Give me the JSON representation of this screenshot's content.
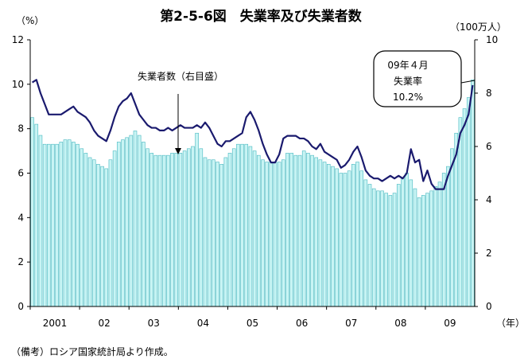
{
  "chart_data": {
    "type": "bar",
    "title": "第2-5-6図　失業率及び失業者数",
    "left_axis_unit": "（%）",
    "right_axis_unit": "（100万人）",
    "x_axis_unit": "（年）",
    "left_ylim": [
      0,
      12
    ],
    "left_yticks": [
      "0",
      "2",
      "4",
      "6",
      "8",
      "10",
      "12"
    ],
    "right_ylim": [
      0,
      10
    ],
    "right_yticks": [
      "0",
      "2",
      "4",
      "6",
      "8",
      "10"
    ],
    "x_tick_labels": [
      "2001",
      "02",
      "03",
      "04",
      "05",
      "06",
      "07",
      "08",
      "09"
    ],
    "grid": false,
    "series": [
      {
        "name": "失業率",
        "axis": "left",
        "mark": "bar",
        "values": [
          8.5,
          8.2,
          7.7,
          7.3,
          7.3,
          7.3,
          7.3,
          7.4,
          7.5,
          7.5,
          7.4,
          7.3,
          7.1,
          6.9,
          6.7,
          6.6,
          6.4,
          6.3,
          6.2,
          6.6,
          7.0,
          7.4,
          7.5,
          7.6,
          7.7,
          7.9,
          7.7,
          7.4,
          7.1,
          6.9,
          6.8,
          6.8,
          6.8,
          6.8,
          6.9,
          6.9,
          6.9,
          7.0,
          7.1,
          7.2,
          7.8,
          7.1,
          6.7,
          6.6,
          6.6,
          6.5,
          6.4,
          6.7,
          6.9,
          7.1,
          7.3,
          7.3,
          7.3,
          7.2,
          7.0,
          6.8,
          6.6,
          6.5,
          6.5,
          6.5,
          6.5,
          6.6,
          6.9,
          6.9,
          6.8,
          6.8,
          7.0,
          6.9,
          6.8,
          6.7,
          6.6,
          6.5,
          6.4,
          6.3,
          6.2,
          6.0,
          6.0,
          6.1,
          6.4,
          6.5,
          6.1,
          5.7,
          5.5,
          5.3,
          5.2,
          5.2,
          5.1,
          5.0,
          5.1,
          5.5,
          5.8,
          6.0,
          5.7,
          5.3,
          4.9,
          5.0,
          5.1,
          5.2,
          5.4,
          5.6,
          6.0,
          6.3,
          7.1,
          7.8,
          8.5,
          8.9,
          9.4,
          10.2
        ]
      },
      {
        "name": "失業者数",
        "axis": "right",
        "mark": "line",
        "values": [
          8.4,
          8.5,
          8.0,
          7.6,
          7.2,
          7.2,
          7.2,
          7.2,
          7.3,
          7.4,
          7.5,
          7.3,
          7.2,
          7.1,
          6.9,
          6.6,
          6.4,
          6.3,
          6.2,
          6.6,
          7.1,
          7.5,
          7.7,
          7.8,
          8.0,
          7.6,
          7.2,
          7.0,
          6.8,
          6.7,
          6.7,
          6.6,
          6.6,
          6.7,
          6.6,
          6.7,
          6.8,
          6.7,
          6.7,
          6.7,
          6.8,
          6.7,
          6.9,
          6.7,
          6.4,
          6.1,
          6.0,
          6.2,
          6.2,
          6.3,
          6.4,
          6.5,
          7.1,
          7.3,
          7.0,
          6.6,
          6.1,
          5.7,
          5.4,
          5.4,
          5.7,
          6.3,
          6.4,
          6.4,
          6.4,
          6.3,
          6.3,
          6.2,
          6.0,
          5.9,
          6.1,
          5.8,
          5.7,
          5.6,
          5.5,
          5.2,
          5.3,
          5.5,
          5.8,
          6.0,
          5.6,
          5.1,
          4.9,
          4.8,
          4.8,
          4.7,
          4.8,
          4.9,
          4.8,
          4.9,
          4.8,
          5.0,
          5.9,
          5.4,
          5.5,
          4.7,
          5.1,
          4.6,
          4.4,
          4.4,
          4.4,
          4.9,
          5.3,
          5.7,
          6.5,
          6.8,
          7.2,
          8.3
        ]
      }
    ],
    "annotations": {
      "line_label": "失業者数（右目盛）",
      "callout_lines": [
        "09年４月",
        "失業率",
        "10.2%"
      ]
    }
  },
  "source_note": "（備考）ロシア国家統計局より作成。"
}
